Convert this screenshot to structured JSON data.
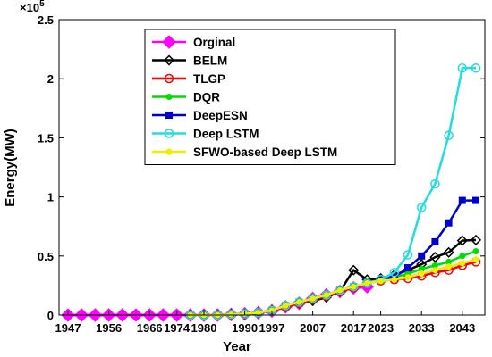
{
  "chart_data": {
    "type": "line",
    "xlabel": "Year",
    "ylabel": "Energy(MW)",
    "y_multiplier_label": "×10",
    "y_multiplier_exp": "5",
    "yticks": [
      "0",
      "0.5",
      "1",
      "1.5",
      "2",
      "2.5"
    ],
    "ylim": [
      0,
      2.5
    ],
    "xticks": [
      "1947",
      "1956",
      "1966",
      "1974",
      "1980",
      "1990",
      "1997",
      "2007",
      "2017",
      "2023",
      "2033",
      "2043"
    ],
    "grid": false,
    "legend_position": "top-left",
    "x_years_indexed": [
      1947,
      1950,
      1953,
      1956,
      1959,
      1962,
      1966,
      1970,
      1974,
      1977,
      1980,
      1983,
      1987,
      1990,
      1993,
      1997,
      2000,
      2004,
      2007,
      2010,
      2014,
      2017,
      2020,
      2023,
      2026,
      2030,
      2033,
      2036,
      2040,
      2043,
      2046
    ],
    "series": [
      {
        "name": "Orginal",
        "color": "#ff00ff",
        "marker": "diamond",
        "x_index": [
          0,
          1,
          2,
          3,
          4,
          5,
          6,
          7,
          8,
          9,
          10,
          11,
          12,
          13,
          14,
          15,
          16,
          17,
          18,
          19,
          20,
          21,
          22
        ],
        "values": [
          0,
          0,
          0,
          0,
          0,
          0,
          0,
          0,
          0,
          0,
          0,
          0,
          0.005,
          0.01,
          0.02,
          0.035,
          0.07,
          0.1,
          0.14,
          0.17,
          0.2,
          0.23,
          0.24
        ]
      },
      {
        "name": "BELM",
        "color": "#000000",
        "marker": "diamond-open",
        "x_index": [
          9,
          10,
          11,
          12,
          13,
          14,
          15,
          16,
          17,
          18,
          19,
          20,
          21,
          22,
          23,
          24,
          25,
          26,
          27,
          28,
          29,
          30
        ],
        "values": [
          0,
          0,
          0,
          0.005,
          0.01,
          0.02,
          0.04,
          0.07,
          0.1,
          0.12,
          0.15,
          0.2,
          0.38,
          0.3,
          0.31,
          0.34,
          0.38,
          0.43,
          0.49,
          0.53,
          0.63,
          0.635
        ]
      },
      {
        "name": "TLGP",
        "color": "#ff0000",
        "marker": "circle-open",
        "x_index": [
          9,
          10,
          11,
          12,
          13,
          14,
          15,
          16,
          17,
          18,
          19,
          20,
          21,
          22,
          23,
          24,
          25,
          26,
          27,
          28,
          29,
          30
        ],
        "values": [
          0,
          0,
          0,
          0.005,
          0.01,
          0.02,
          0.04,
          0.07,
          0.1,
          0.13,
          0.16,
          0.2,
          0.23,
          0.27,
          0.29,
          0.3,
          0.31,
          0.33,
          0.36,
          0.38,
          0.42,
          0.45
        ]
      },
      {
        "name": "DQR",
        "color": "#00dd00",
        "marker": "dot",
        "x_index": [
          9,
          10,
          11,
          12,
          13,
          14,
          15,
          16,
          17,
          18,
          19,
          20,
          21,
          22,
          23,
          24,
          25,
          26,
          27,
          28,
          29,
          30
        ],
        "values": [
          0,
          0,
          0,
          0.005,
          0.01,
          0.02,
          0.04,
          0.08,
          0.11,
          0.14,
          0.17,
          0.21,
          0.24,
          0.27,
          0.3,
          0.32,
          0.35,
          0.39,
          0.42,
          0.45,
          0.5,
          0.54
        ]
      },
      {
        "name": "DeepESN",
        "color": "#0000cc",
        "marker": "square",
        "x_index": [
          9,
          10,
          11,
          12,
          13,
          14,
          15,
          16,
          17,
          18,
          19,
          20,
          21,
          22,
          23,
          24,
          25,
          26,
          27,
          28,
          29,
          30
        ],
        "values": [
          0,
          0,
          0,
          0.005,
          0.01,
          0.02,
          0.04,
          0.08,
          0.11,
          0.14,
          0.17,
          0.21,
          0.24,
          0.27,
          0.3,
          0.32,
          0.4,
          0.5,
          0.62,
          0.78,
          0.97,
          0.97
        ]
      },
      {
        "name": "Deep LSTM",
        "color": "#22dddd",
        "marker": "circle-open",
        "x_index": [
          9,
          10,
          11,
          12,
          13,
          14,
          15,
          16,
          17,
          18,
          19,
          20,
          21,
          22,
          23,
          24,
          25,
          26,
          27,
          28,
          29,
          30
        ],
        "values": [
          0,
          0,
          0,
          0.005,
          0.01,
          0.02,
          0.04,
          0.08,
          0.11,
          0.14,
          0.17,
          0.21,
          0.24,
          0.27,
          0.3,
          0.36,
          0.51,
          0.91,
          1.11,
          1.52,
          2.09,
          2.09
        ]
      },
      {
        "name": "SFWO-based Deep LSTM",
        "color": "#eeee00",
        "marker": "dot",
        "x_index": [
          9,
          10,
          11,
          12,
          13,
          14,
          15,
          16,
          17,
          18,
          19,
          20,
          21,
          22,
          23,
          24,
          25,
          26,
          27,
          28,
          29,
          30
        ],
        "values": [
          0,
          0,
          0,
          0.005,
          0.01,
          0.02,
          0.04,
          0.08,
          0.11,
          0.14,
          0.17,
          0.21,
          0.24,
          0.27,
          0.29,
          0.3,
          0.32,
          0.35,
          0.38,
          0.41,
          0.44,
          0.47
        ]
      }
    ]
  }
}
